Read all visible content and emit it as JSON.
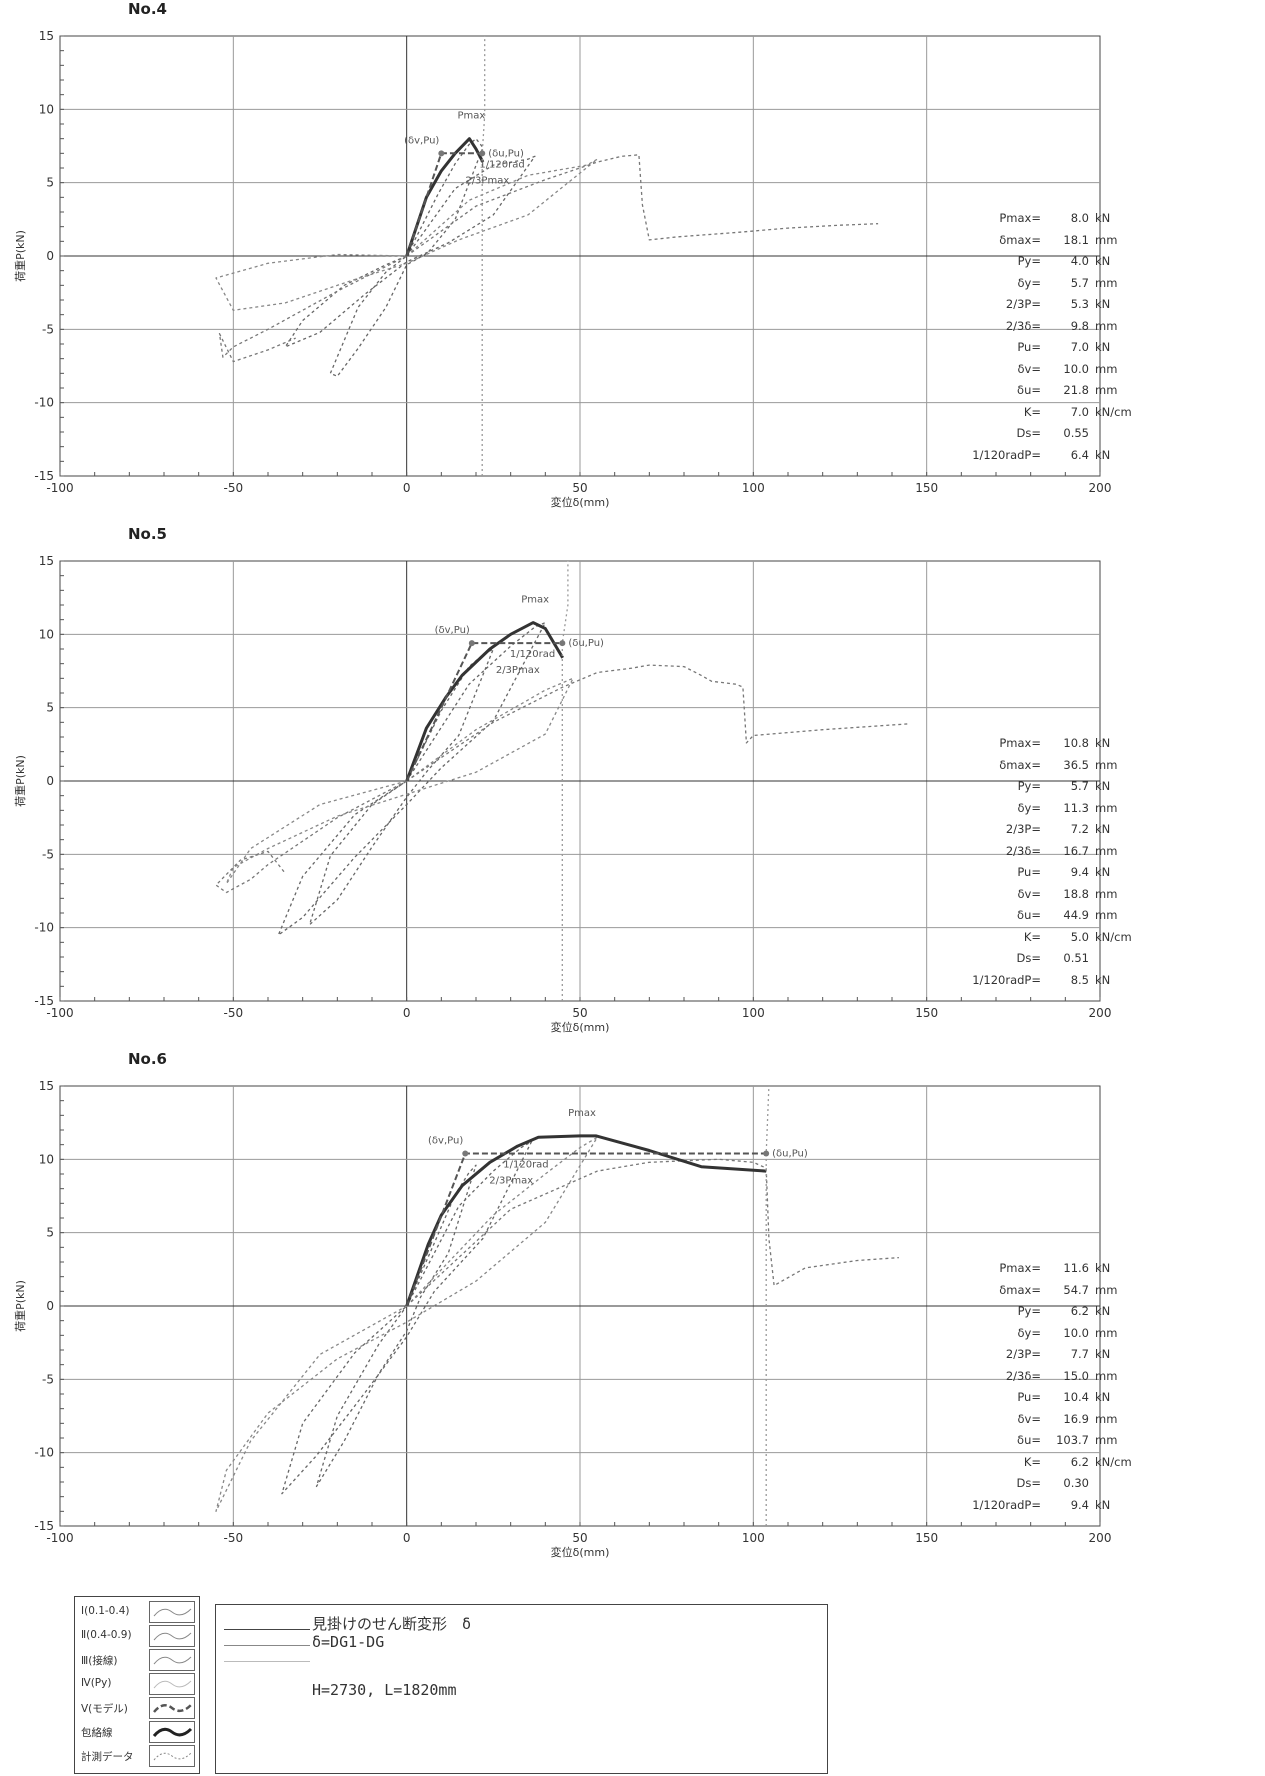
{
  "chart_data": [
    {
      "type": "line",
      "panel_label": "No.4",
      "xlabel": "変位δ(mm)",
      "ylabel": "荷重P(kN)",
      "xlim": [
        -100,
        200
      ],
      "ylim": [
        -15,
        15
      ],
      "x_ticks": [
        "-100",
        "-50",
        "0",
        "50",
        "100",
        "150",
        "200"
      ],
      "y_ticks": [
        "15",
        "10",
        "5",
        "0",
        "-5",
        "-10",
        "-15"
      ],
      "grid": true,
      "annotations": [
        "Pmax",
        "(δv,Pu)",
        "(δu,Pu)",
        "1/120rad",
        "2/3Pmax"
      ],
      "series": [
        {
          "role": "cyclic",
          "color": "#666666",
          "dash": "3,3",
          "x": [
            0,
            9,
            14,
            18,
            20,
            22,
            14,
            6,
            0,
            -6,
            -14,
            -20,
            -22,
            -14,
            -6,
            0
          ],
          "y": [
            0,
            4.2,
            6.3,
            7.6,
            8.0,
            7.4,
            2.5,
            0.2,
            -0.6,
            -3.5,
            -6.3,
            -8.2,
            -8.0,
            -3.5,
            -1.1,
            0
          ]
        },
        {
          "role": "cyclic",
          "color": "#666666",
          "dash": "3,3",
          "x": [
            0,
            14,
            25,
            35,
            37,
            25,
            12,
            0,
            -12,
            -25,
            -35,
            -30,
            -18,
            -6,
            0
          ],
          "y": [
            0,
            4.6,
            6.2,
            6.6,
            6.8,
            2.8,
            0.9,
            -0.4,
            -2.6,
            -5.2,
            -6.2,
            -4.4,
            -2.0,
            -0.6,
            0
          ]
        },
        {
          "role": "cyclic",
          "color": "#888888",
          "dash": "3,3",
          "x": [
            0,
            18,
            35,
            52,
            55,
            35,
            15,
            0,
            -15,
            -35,
            -50,
            -55,
            -40,
            -20,
            0
          ],
          "y": [
            0,
            3.8,
            5.5,
            6.2,
            6.6,
            2.8,
            1.1,
            -0.5,
            -1.6,
            -3.2,
            -3.7,
            -1.5,
            -0.5,
            0.1,
            0
          ]
        },
        {
          "role": "measured",
          "color": "#777777",
          "dash": "3,3",
          "x": [
            0,
            20,
            40,
            55,
            62,
            67,
            68,
            70,
            78,
            95,
            110,
            125,
            136
          ],
          "y": [
            0,
            3.4,
            5.2,
            6.4,
            6.8,
            6.9,
            3.5,
            1.1,
            1.3,
            1.6,
            1.9,
            2.1,
            2.2
          ]
        },
        {
          "role": "measured",
          "color": "#777777",
          "dash": "3,3",
          "x": [
            0,
            -20,
            -40,
            -50,
            -53,
            -54,
            -50,
            -40,
            -32
          ],
          "y": [
            0,
            -2.4,
            -5.0,
            -6.2,
            -6.9,
            -5.3,
            -7.2,
            -6.4,
            -5.6
          ]
        },
        {
          "role": "envelope",
          "color": "#333333",
          "dash": "",
          "width": 3,
          "x": [
            0,
            5.7,
            10,
            14,
            18.1,
            20,
            22
          ],
          "y": [
            0,
            4.0,
            5.8,
            7.0,
            8.0,
            7.3,
            6.4
          ]
        },
        {
          "role": "model",
          "color": "#555555",
          "dash": "6,3",
          "width": 2,
          "x": [
            0,
            10.0,
            21.8
          ],
          "y": [
            0,
            7.0,
            7.0
          ]
        },
        {
          "role": "du-line",
          "color": "#999999",
          "dash": "2,3",
          "x": [
            21.8,
            21.8,
            22.5,
            22.5
          ],
          "y": [
            -15,
            7.0,
            9.6,
            15
          ]
        }
      ]
    },
    {
      "type": "line",
      "panel_label": "No.5",
      "xlabel": "変位δ(mm)",
      "ylabel": "荷重P(kN)",
      "xlim": [
        -100,
        200
      ],
      "ylim": [
        -15,
        15
      ],
      "x_ticks": [
        "-100",
        "-50",
        "0",
        "50",
        "100",
        "150",
        "200"
      ],
      "y_ticks": [
        "15",
        "10",
        "5",
        "0",
        "-5",
        "-10",
        "-15"
      ],
      "grid": true,
      "annotations": [
        "Pmax",
        "(δv,Pu)",
        "(δu,Pu)",
        "1/120rad",
        "2/3Pmax"
      ],
      "series": [
        {
          "role": "cyclic",
          "color": "#666666",
          "dash": "3,3",
          "x": [
            0,
            10,
            18,
            22,
            25,
            15,
            6,
            0,
            -10,
            -20,
            -28,
            -22,
            -10,
            0
          ],
          "y": [
            0,
            4.8,
            7.8,
            8.6,
            9.0,
            3.1,
            0.7,
            -1.1,
            -4.5,
            -8.1,
            -9.8,
            -5.1,
            -1.6,
            0
          ]
        },
        {
          "role": "cyclic",
          "color": "#666666",
          "dash": "3,3",
          "x": [
            0,
            18,
            30,
            37,
            40,
            25,
            10,
            0,
            -15,
            -30,
            -37,
            -30,
            -15,
            0
          ],
          "y": [
            0,
            6.6,
            9.2,
            10.5,
            10.8,
            4.1,
            0.9,
            -1.6,
            -5.2,
            -9.3,
            -10.5,
            -6.5,
            -2.3,
            0
          ]
        },
        {
          "role": "cyclic",
          "color": "#888888",
          "dash": "3,3",
          "x": [
            0,
            20,
            40,
            48,
            40,
            20,
            0,
            -20,
            -40,
            -50,
            -52,
            -45,
            -25,
            0
          ],
          "y": [
            0,
            3.5,
            6.2,
            7.0,
            3.2,
            0.6,
            -0.9,
            -2.4,
            -4.6,
            -5.9,
            -7.0,
            -4.6,
            -1.6,
            0
          ]
        },
        {
          "role": "measured",
          "color": "#777777",
          "dash": "3,3",
          "x": [
            0,
            25,
            45,
            55,
            65,
            70,
            80,
            85,
            88,
            95,
            97,
            98,
            100,
            120,
            145
          ],
          "y": [
            0,
            4.0,
            6.4,
            7.4,
            7.7,
            7.9,
            7.8,
            7.2,
            6.8,
            6.6,
            6.4,
            2.6,
            3.1,
            3.5,
            3.9
          ]
        },
        {
          "role": "measured",
          "color": "#777777",
          "dash": "3,3",
          "x": [
            0,
            -20,
            -35,
            -40,
            -45,
            -52,
            -55,
            -48,
            -40,
            -35
          ],
          "y": [
            0,
            -2.5,
            -4.9,
            -5.7,
            -6.7,
            -7.6,
            -7.1,
            -5.4,
            -4.8,
            -6.3
          ]
        },
        {
          "role": "envelope",
          "color": "#333333",
          "dash": "",
          "width": 3,
          "x": [
            0,
            5.7,
            11.3,
            16,
            24,
            30,
            36.5,
            40,
            45
          ],
          "y": [
            0,
            3.6,
            5.7,
            7.2,
            9.0,
            10.0,
            10.8,
            10.4,
            8.4
          ]
        },
        {
          "role": "model",
          "color": "#555555",
          "dash": "6,3",
          "width": 2,
          "x": [
            0,
            18.8,
            44.9
          ],
          "y": [
            0,
            9.4,
            9.4
          ]
        },
        {
          "role": "du-line",
          "color": "#999999",
          "dash": "2,3",
          "x": [
            44.9,
            44.9,
            46.5,
            46.5
          ],
          "y": [
            -15,
            9.4,
            12.0,
            15
          ]
        }
      ]
    },
    {
      "type": "line",
      "panel_label": "No.6",
      "xlabel": "変位δ(mm)",
      "ylabel": "荷重P(kN)",
      "xlim": [
        -100,
        200
      ],
      "ylim": [
        -15,
        15
      ],
      "x_ticks": [
        "-100",
        "-50",
        "0",
        "50",
        "100",
        "150",
        "200"
      ],
      "y_ticks": [
        "15",
        "10",
        "5",
        "0",
        "-5",
        "-10",
        "-15"
      ],
      "grid": true,
      "annotations": [
        "Pmax",
        "(δv,Pu)",
        "(δu,Pu)",
        "1/120rad",
        "2/3Pmax"
      ],
      "series": [
        {
          "role": "cyclic",
          "color": "#666666",
          "dash": "3,3",
          "x": [
            0,
            8,
            14,
            18,
            20,
            12,
            4,
            0,
            -8,
            -18,
            -26,
            -20,
            -8,
            0
          ],
          "y": [
            0,
            4.3,
            7.6,
            9.1,
            9.6,
            3.6,
            0.6,
            -1.7,
            -4.6,
            -9.2,
            -12.3,
            -7.5,
            -2.6,
            0
          ]
        },
        {
          "role": "cyclic",
          "color": "#666666",
          "dash": "3,3",
          "x": [
            0,
            15,
            25,
            33,
            36,
            22,
            8,
            0,
            -12,
            -26,
            -36,
            -30,
            -15,
            0
          ],
          "y": [
            0,
            6.8,
            9.2,
            10.8,
            11.2,
            4.6,
            1.0,
            -2.1,
            -5.9,
            -10.2,
            -12.8,
            -8.0,
            -3.2,
            0
          ]
        },
        {
          "role": "cyclic",
          "color": "#888888",
          "dash": "3,3",
          "x": [
            0,
            25,
            40,
            50,
            55,
            40,
            20,
            0,
            -20,
            -40,
            -52,
            -55,
            -45,
            -25,
            0
          ],
          "y": [
            0,
            6.2,
            9.0,
            10.8,
            11.5,
            5.7,
            1.7,
            -1.1,
            -3.6,
            -7.3,
            -11.2,
            -14.0,
            -9.2,
            -3.3,
            0
          ]
        },
        {
          "role": "measured",
          "color": "#777777",
          "dash": "3,3",
          "x": [
            0,
            30,
            55,
            70,
            90,
            100,
            103.7,
            104.5,
            106,
            115,
            130,
            142
          ],
          "y": [
            0,
            6.6,
            9.2,
            9.8,
            10.0,
            9.8,
            9.4,
            4.6,
            1.4,
            2.6,
            3.1,
            3.3
          ]
        },
        {
          "role": "envelope",
          "color": "#333333",
          "dash": "",
          "width": 3,
          "x": [
            0,
            6.2,
            10,
            16,
            24,
            32,
            38,
            50,
            54.7,
            70,
            85,
            103.7
          ],
          "y": [
            0,
            4.2,
            6.2,
            8.2,
            9.8,
            10.9,
            11.5,
            11.6,
            11.6,
            10.6,
            9.5,
            9.2
          ]
        },
        {
          "role": "model",
          "color": "#555555",
          "dash": "6,3",
          "width": 2,
          "x": [
            0,
            16.9,
            103.7
          ],
          "y": [
            0,
            10.4,
            10.4
          ]
        },
        {
          "role": "du-line",
          "color": "#999999",
          "dash": "2,3",
          "x": [
            103.7,
            103.7,
            104.5,
            104.5
          ],
          "y": [
            -15,
            10.4,
            15,
            15
          ]
        }
      ]
    }
  ],
  "stats": [
    [
      {
        "label": "Pmax=",
        "value": "8.0",
        "unit": "kN"
      },
      {
        "label": "δmax=",
        "value": "18.1",
        "unit": "mm"
      },
      {
        "label": "Py=",
        "value": "4.0",
        "unit": "kN"
      },
      {
        "label": "δy=",
        "value": "5.7",
        "unit": "mm"
      },
      {
        "label": "2/3P=",
        "value": "5.3",
        "unit": "kN"
      },
      {
        "label": "2/3δ=",
        "value": "9.8",
        "unit": "mm"
      },
      {
        "label": "Pu=",
        "value": "7.0",
        "unit": "kN"
      },
      {
        "label": "δv=",
        "value": "10.0",
        "unit": "mm"
      },
      {
        "label": "δu=",
        "value": "21.8",
        "unit": "mm"
      },
      {
        "label": "K=",
        "value": "7.0",
        "unit": "kN/cm"
      },
      {
        "label": "Ds=",
        "value": "0.55",
        "unit": ""
      },
      {
        "label": "1/120radP=",
        "value": "6.4",
        "unit": "kN"
      }
    ],
    [
      {
        "label": "Pmax=",
        "value": "10.8",
        "unit": "kN"
      },
      {
        "label": "δmax=",
        "value": "36.5",
        "unit": "mm"
      },
      {
        "label": "Py=",
        "value": "5.7",
        "unit": "kN"
      },
      {
        "label": "δy=",
        "value": "11.3",
        "unit": "mm"
      },
      {
        "label": "2/3P=",
        "value": "7.2",
        "unit": "kN"
      },
      {
        "label": "2/3δ=",
        "value": "16.7",
        "unit": "mm"
      },
      {
        "label": "Pu=",
        "value": "9.4",
        "unit": "kN"
      },
      {
        "label": "δv=",
        "value": "18.8",
        "unit": "mm"
      },
      {
        "label": "δu=",
        "value": "44.9",
        "unit": "mm"
      },
      {
        "label": "K=",
        "value": "5.0",
        "unit": "kN/cm"
      },
      {
        "label": "Ds=",
        "value": "0.51",
        "unit": ""
      },
      {
        "label": "1/120radP=",
        "value": "8.5",
        "unit": "kN"
      }
    ],
    [
      {
        "label": "Pmax=",
        "value": "11.6",
        "unit": "kN"
      },
      {
        "label": "δmax=",
        "value": "54.7",
        "unit": "mm"
      },
      {
        "label": "Py=",
        "value": "6.2",
        "unit": "kN"
      },
      {
        "label": "δy=",
        "value": "10.0",
        "unit": "mm"
      },
      {
        "label": "2/3P=",
        "value": "7.7",
        "unit": "kN"
      },
      {
        "label": "2/3δ=",
        "value": "15.0",
        "unit": "mm"
      },
      {
        "label": "Pu=",
        "value": "10.4",
        "unit": "kN"
      },
      {
        "label": "δv=",
        "value": "16.9",
        "unit": "mm"
      },
      {
        "label": "δu=",
        "value": "103.7",
        "unit": "mm"
      },
      {
        "label": "K=",
        "value": "6.2",
        "unit": "kN/cm"
      },
      {
        "label": "Ds=",
        "value": "0.30",
        "unit": ""
      },
      {
        "label": "1/120radP=",
        "value": "9.4",
        "unit": "kN"
      }
    ]
  ],
  "legend": [
    {
      "label": "Ⅰ(0.1-0.4)",
      "color": "#888888",
      "dash": "",
      "width": 1
    },
    {
      "label": "Ⅱ(0.4-0.9)",
      "color": "#888888",
      "dash": "",
      "width": 1
    },
    {
      "label": "Ⅲ(接線)",
      "color": "#888888",
      "dash": "",
      "width": 1
    },
    {
      "label": "Ⅳ(Py)",
      "color": "#bbbbbb",
      "dash": "",
      "width": 1
    },
    {
      "label": "Ⅴ(モデル)",
      "color": "#555555",
      "dash": "6,3",
      "width": 2.5
    },
    {
      "label": "包絡線",
      "color": "#222222",
      "dash": "",
      "width": 3
    },
    {
      "label": "計測データ",
      "color": "#888888",
      "dash": "2,2",
      "width": 1
    }
  ],
  "notes": {
    "line1": "見掛けのせん断変形　δ",
    "line2": "δ=DG1-DG",
    "line3": "H=2730, L=1820mm"
  }
}
